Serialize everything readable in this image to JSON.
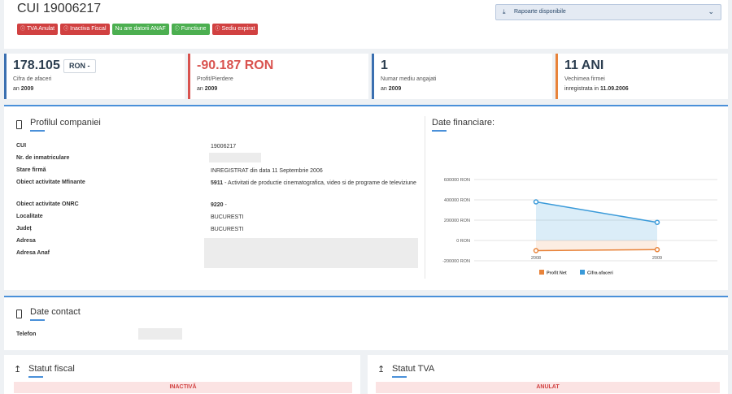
{
  "header": {
    "title": "CUI 19006217",
    "badges": [
      {
        "label": "TVA Anulat",
        "color": "red",
        "icon": "info-icon"
      },
      {
        "label": "Inactiva Fiscal",
        "color": "red",
        "icon": "info-icon"
      },
      {
        "label": "Nu are datorii ANAF",
        "color": "green",
        "icon": ""
      },
      {
        "label": "Functiune",
        "color": "green",
        "icon": "info-icon"
      },
      {
        "label": "Sediu expirat",
        "color": "red",
        "icon": "info-icon"
      }
    ],
    "reports_label": "Rapoarte disponibile"
  },
  "kpis": [
    {
      "value": "178.105",
      "unit": "RON -",
      "label": "Cifra de afaceri",
      "sub_prefix": "an",
      "sub_value": "2009",
      "accent": "#3a6fb0",
      "negative": false
    },
    {
      "value": "-90.187 RON",
      "label": "Profit/Pierdere",
      "sub_prefix": "an",
      "sub_value": "2009",
      "accent": "#d9534f",
      "negative": true
    },
    {
      "value": "1",
      "label": "Numar mediu angajati",
      "sub_prefix": "an",
      "sub_value": "2009",
      "accent": "#3a6fb0",
      "negative": false
    },
    {
      "value": "11 ANI",
      "label": "Vechimea firmei",
      "sub_prefix": "inregistrata in",
      "sub_value": "11.09.2006",
      "accent": "#e8833a",
      "negative": false
    }
  ],
  "profile": {
    "title": "Profilul companiei",
    "rows": [
      {
        "label": "CUI",
        "value": "19006217"
      },
      {
        "label": "Nr. de inmatriculare",
        "value": ""
      },
      {
        "label": "Stare firmă",
        "value": "INREGISTRAT din data 11 Septembrie 2006"
      },
      {
        "label": "Obiect activitate Mfinante",
        "code": "5911",
        "value": " - Activitati de productie cinematografica, video si de programe de televiziune"
      },
      {
        "label": "Obiect activitate ONRC",
        "code": "9220",
        "value": " -"
      },
      {
        "label": "Localitate",
        "value": "BUCURESTI"
      },
      {
        "label": "Județ",
        "value": "BUCURESTI"
      },
      {
        "label": "Adresa",
        "value": ""
      },
      {
        "label": "Adresa Anaf",
        "value": ""
      }
    ]
  },
  "financial": {
    "title": "Date financiare:"
  },
  "chart_data": {
    "type": "line",
    "x": [
      "2008",
      "2009"
    ],
    "series": [
      {
        "name": "Profit Net",
        "values": [
          -100000,
          -90187
        ],
        "color": "#e8833a"
      },
      {
        "name": "Cifra afaceri",
        "values": [
          380000,
          178105
        ],
        "color": "#3a9ad9"
      }
    ],
    "yticks": [
      "600000 RON",
      "400000 RON",
      "200000 RON",
      "0 RON",
      "-200000 RON"
    ],
    "ylim": [
      -200000,
      600000
    ],
    "grid": true,
    "legend": "bottom"
  },
  "contact": {
    "title": "Date contact",
    "phone_label": "Telefon"
  },
  "fiscal": {
    "title": "Statut fiscal",
    "status": "INACTIVĂ"
  },
  "tva": {
    "title": "Statut TVA",
    "status": "ANULAT"
  }
}
